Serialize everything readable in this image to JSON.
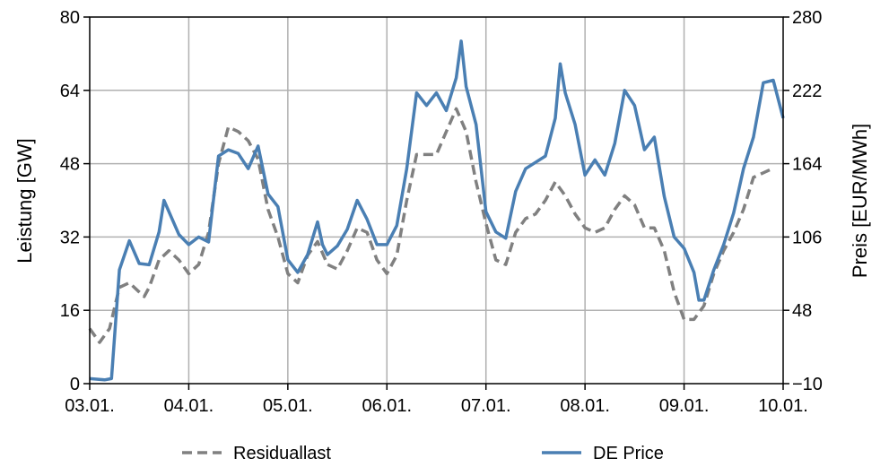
{
  "chart_data": {
    "type": "line",
    "xlabel": "",
    "ylabel": "Leistung [GW]",
    "ylabel_right": "Preis [EUR/MWh]",
    "x_ticks": [
      "03.01.",
      "04.01.",
      "05.01.",
      "06.01.",
      "07.01.",
      "08.01.",
      "09.01.",
      "10.01."
    ],
    "xlim": [
      0,
      7
    ],
    "ylim": [
      0,
      80
    ],
    "ylim_right": [
      -10,
      280
    ],
    "y_ticks": [
      "0",
      "16",
      "32",
      "48",
      "64",
      "80"
    ],
    "y_ticks_right": [
      "−10",
      "48",
      "106",
      "164",
      "222",
      "280"
    ],
    "grid": true,
    "legend_position": "bottom",
    "series": [
      {
        "name": "Residuallast",
        "axis": "left",
        "color": "#808080",
        "style": "dashed",
        "points": [
          [
            0.0,
            12
          ],
          [
            0.1,
            9
          ],
          [
            0.2,
            12
          ],
          [
            0.3,
            21
          ],
          [
            0.4,
            22
          ],
          [
            0.5,
            20
          ],
          [
            0.55,
            19
          ],
          [
            0.6,
            21
          ],
          [
            0.7,
            27
          ],
          [
            0.8,
            29
          ],
          [
            0.9,
            27
          ],
          [
            1.0,
            24
          ],
          [
            1.1,
            26
          ],
          [
            1.2,
            33
          ],
          [
            1.3,
            48
          ],
          [
            1.4,
            56
          ],
          [
            1.5,
            55
          ],
          [
            1.6,
            53
          ],
          [
            1.7,
            49
          ],
          [
            1.8,
            38
          ],
          [
            1.9,
            32
          ],
          [
            2.0,
            24
          ],
          [
            2.1,
            22
          ],
          [
            2.2,
            28
          ],
          [
            2.3,
            31
          ],
          [
            2.4,
            26
          ],
          [
            2.5,
            25
          ],
          [
            2.6,
            29
          ],
          [
            2.7,
            34
          ],
          [
            2.8,
            33
          ],
          [
            2.9,
            27
          ],
          [
            3.0,
            24
          ],
          [
            3.1,
            28
          ],
          [
            3.2,
            40
          ],
          [
            3.3,
            50
          ],
          [
            3.4,
            50
          ],
          [
            3.5,
            50
          ],
          [
            3.6,
            55
          ],
          [
            3.7,
            60
          ],
          [
            3.8,
            55
          ],
          [
            3.9,
            44
          ],
          [
            4.0,
            35
          ],
          [
            4.1,
            27
          ],
          [
            4.2,
            26
          ],
          [
            4.3,
            33
          ],
          [
            4.4,
            36
          ],
          [
            4.5,
            37
          ],
          [
            4.6,
            40
          ],
          [
            4.7,
            44
          ],
          [
            4.8,
            41
          ],
          [
            4.9,
            37
          ],
          [
            5.0,
            34
          ],
          [
            5.1,
            33
          ],
          [
            5.2,
            34
          ],
          [
            5.3,
            38
          ],
          [
            5.4,
            41
          ],
          [
            5.5,
            39
          ],
          [
            5.6,
            34
          ],
          [
            5.7,
            34
          ],
          [
            5.8,
            29
          ],
          [
            5.9,
            20
          ],
          [
            6.0,
            14
          ],
          [
            6.1,
            14
          ],
          [
            6.2,
            17
          ],
          [
            6.3,
            24
          ],
          [
            6.4,
            29
          ],
          [
            6.5,
            33
          ],
          [
            6.6,
            38
          ],
          [
            6.7,
            45
          ],
          [
            6.8,
            46
          ],
          [
            6.9,
            47
          ]
        ]
      },
      {
        "name": "DE Price",
        "axis": "right",
        "color": "#4a7fb3",
        "style": "solid",
        "points": [
          [
            0.0,
            -6
          ],
          [
            0.15,
            -7
          ],
          [
            0.22,
            -6
          ],
          [
            0.3,
            80
          ],
          [
            0.4,
            103
          ],
          [
            0.5,
            85
          ],
          [
            0.6,
            84
          ],
          [
            0.7,
            110
          ],
          [
            0.75,
            135
          ],
          [
            0.9,
            108
          ],
          [
            1.0,
            100
          ],
          [
            1.1,
            106
          ],
          [
            1.2,
            102
          ],
          [
            1.3,
            170
          ],
          [
            1.4,
            175
          ],
          [
            1.5,
            172
          ],
          [
            1.6,
            160
          ],
          [
            1.7,
            178
          ],
          [
            1.8,
            140
          ],
          [
            1.9,
            130
          ],
          [
            2.0,
            88
          ],
          [
            2.1,
            78
          ],
          [
            2.2,
            92
          ],
          [
            2.3,
            118
          ],
          [
            2.35,
            100
          ],
          [
            2.4,
            92
          ],
          [
            2.5,
            99
          ],
          [
            2.6,
            112
          ],
          [
            2.7,
            135
          ],
          [
            2.8,
            120
          ],
          [
            2.9,
            100
          ],
          [
            3.0,
            100
          ],
          [
            3.1,
            115
          ],
          [
            3.2,
            160
          ],
          [
            3.3,
            220
          ],
          [
            3.4,
            210
          ],
          [
            3.5,
            220
          ],
          [
            3.6,
            206
          ],
          [
            3.7,
            232
          ],
          [
            3.75,
            261
          ],
          [
            3.8,
            225
          ],
          [
            3.9,
            195
          ],
          [
            4.0,
            126
          ],
          [
            4.1,
            110
          ],
          [
            4.2,
            105
          ],
          [
            4.3,
            142
          ],
          [
            4.4,
            160
          ],
          [
            4.5,
            165
          ],
          [
            4.6,
            170
          ],
          [
            4.7,
            200
          ],
          [
            4.75,
            243
          ],
          [
            4.8,
            220
          ],
          [
            4.9,
            195
          ],
          [
            5.0,
            155
          ],
          [
            5.1,
            167
          ],
          [
            5.2,
            155
          ],
          [
            5.3,
            180
          ],
          [
            5.4,
            222
          ],
          [
            5.5,
            210
          ],
          [
            5.6,
            175
          ],
          [
            5.7,
            185
          ],
          [
            5.8,
            138
          ],
          [
            5.9,
            106
          ],
          [
            6.0,
            97
          ],
          [
            6.1,
            78
          ],
          [
            6.15,
            56
          ],
          [
            6.2,
            56
          ],
          [
            6.3,
            80
          ],
          [
            6.4,
            100
          ],
          [
            6.5,
            125
          ],
          [
            6.6,
            160
          ],
          [
            6.7,
            185
          ],
          [
            6.8,
            228
          ],
          [
            6.9,
            230
          ],
          [
            7.0,
            200
          ]
        ]
      }
    ]
  }
}
